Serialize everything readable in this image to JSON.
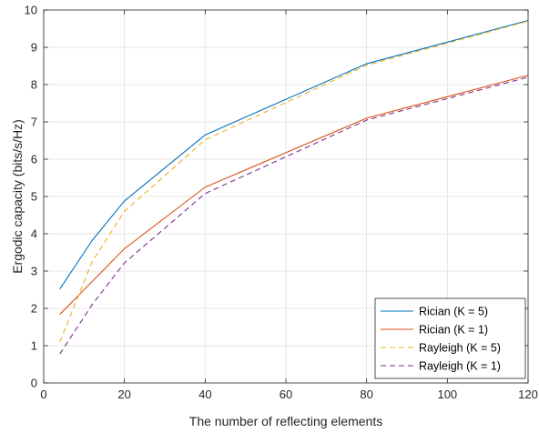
{
  "chart_data": {
    "type": "line",
    "xlabel": "The number of reflecting elements",
    "ylabel": "Ergodic capacity (bits/s/Hz)",
    "xlim": [
      0,
      120
    ],
    "ylim": [
      0,
      10
    ],
    "xticks": [
      0,
      20,
      40,
      60,
      80,
      100,
      120
    ],
    "yticks": [
      0,
      1,
      2,
      3,
      4,
      5,
      6,
      7,
      8,
      9,
      10
    ],
    "grid": true,
    "legend_position": "bottom-right",
    "series": [
      {
        "name": "Rician (K = 5)",
        "color": "#0072BD",
        "style": "solid",
        "x": [
          4,
          12,
          20,
          40,
          80,
          120
        ],
        "y": [
          2.52,
          3.82,
          4.88,
          6.65,
          8.56,
          9.72
        ]
      },
      {
        "name": "Rician (K = 1)",
        "color": "#D95319",
        "style": "solid",
        "x": [
          4,
          12,
          20,
          40,
          80,
          120
        ],
        "y": [
          1.84,
          2.72,
          3.6,
          5.25,
          7.1,
          8.25
        ]
      },
      {
        "name": "Rayleigh (K = 5)",
        "color": "#EDB120",
        "style": "dashed",
        "x": [
          4,
          12,
          20,
          40,
          80,
          120
        ],
        "y": [
          1.1,
          3.25,
          4.6,
          6.52,
          8.52,
          9.7
        ]
      },
      {
        "name": "Rayleigh (K = 1)",
        "color": "#7E2F8E",
        "style": "dashed",
        "x": [
          4,
          12,
          20,
          40,
          80,
          120
        ],
        "y": [
          0.78,
          2.1,
          3.22,
          5.08,
          7.05,
          8.2
        ]
      }
    ]
  }
}
